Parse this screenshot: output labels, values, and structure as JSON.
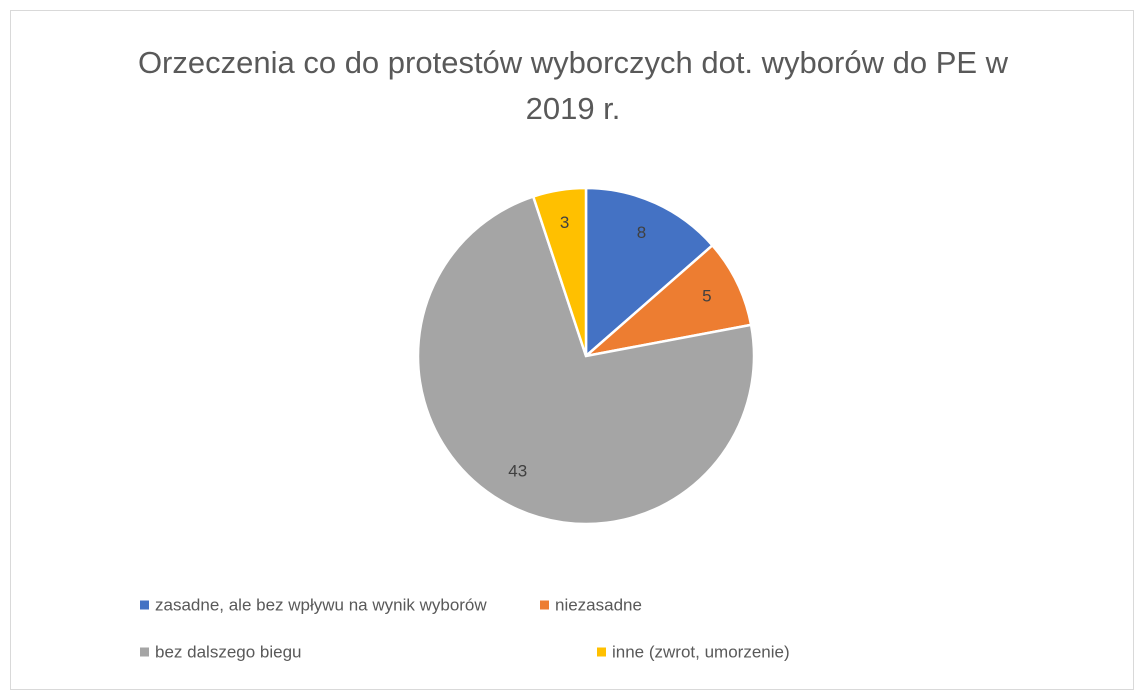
{
  "chart_data": {
    "type": "pie",
    "title": "Orzeczenia co do protestów wyborczych dot. wyborów do PE w 2019 r.",
    "categories": [
      "zasadne, ale bez wpływu na wynik wyborów",
      "niezasadne",
      "bez dalszego biegu",
      "inne (zwrot, umorzenie)"
    ],
    "values": [
      8,
      5,
      43,
      3
    ],
    "colors": [
      "#4472c4",
      "#ed7d31",
      "#a5a5a5",
      "#ffc000"
    ],
    "legend": "bottom"
  }
}
